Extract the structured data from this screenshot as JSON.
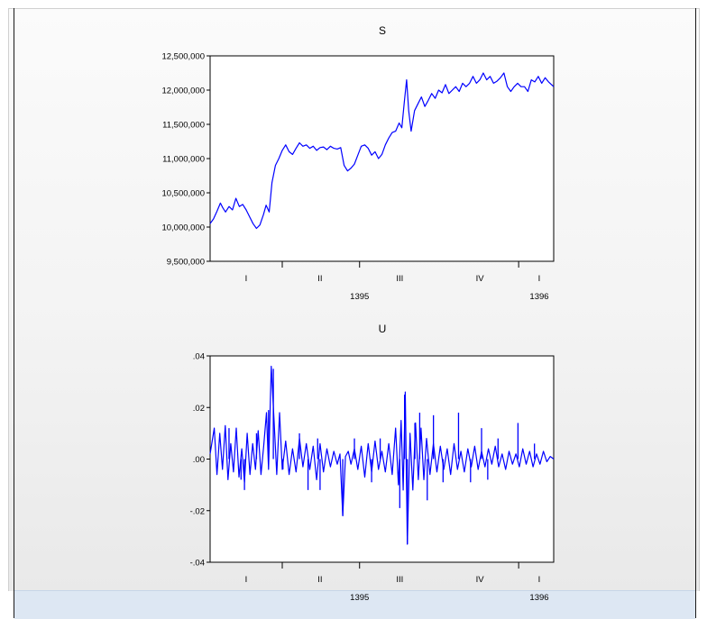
{
  "colors": {
    "series": "#0000ff",
    "axis": "#000000",
    "panel": "#f3f3f3",
    "status_strip": "#dde7f3"
  },
  "chart_data": [
    {
      "type": "line",
      "title": "S",
      "xlabel": "",
      "ylabel": "",
      "ylim": [
        9500000,
        12500000
      ],
      "y_ticks": [
        9500000,
        10000000,
        10500000,
        11000000,
        11500000,
        12000000,
        12500000
      ],
      "y_tick_labels": [
        "9,500,000",
        "10,000,000",
        "10,500,000",
        "11,000,000",
        "11,500,000",
        "12,000,000",
        "12,500,000"
      ],
      "x_period_labels": [
        "I",
        "II",
        "III",
        "IV",
        "I"
      ],
      "x_year_labels": [
        "1395",
        "1396"
      ],
      "grid": false,
      "series": [
        {
          "points": [
            [
              0.0,
              10050000
            ],
            [
              0.01,
              10120000
            ],
            [
              0.02,
              10230000
            ],
            [
              0.03,
              10350000
            ],
            [
              0.037,
              10280000
            ],
            [
              0.045,
              10220000
            ],
            [
              0.055,
              10300000
            ],
            [
              0.065,
              10250000
            ],
            [
              0.075,
              10420000
            ],
            [
              0.085,
              10300000
            ],
            [
              0.095,
              10330000
            ],
            [
              0.105,
              10250000
            ],
            [
              0.115,
              10150000
            ],
            [
              0.125,
              10050000
            ],
            [
              0.135,
              9980000
            ],
            [
              0.145,
              10030000
            ],
            [
              0.155,
              10180000
            ],
            [
              0.163,
              10320000
            ],
            [
              0.172,
              10220000
            ],
            [
              0.18,
              10650000
            ],
            [
              0.19,
              10900000
            ],
            [
              0.2,
              11000000
            ],
            [
              0.21,
              11120000
            ],
            [
              0.22,
              11200000
            ],
            [
              0.23,
              11100000
            ],
            [
              0.24,
              11060000
            ],
            [
              0.25,
              11150000
            ],
            [
              0.26,
              11230000
            ],
            [
              0.27,
              11180000
            ],
            [
              0.28,
              11200000
            ],
            [
              0.29,
              11150000
            ],
            [
              0.3,
              11180000
            ],
            [
              0.31,
              11120000
            ],
            [
              0.32,
              11160000
            ],
            [
              0.33,
              11170000
            ],
            [
              0.34,
              11130000
            ],
            [
              0.35,
              11180000
            ],
            [
              0.36,
              11150000
            ],
            [
              0.37,
              11140000
            ],
            [
              0.38,
              11160000
            ],
            [
              0.39,
              10900000
            ],
            [
              0.4,
              10820000
            ],
            [
              0.41,
              10860000
            ],
            [
              0.42,
              10920000
            ],
            [
              0.43,
              11050000
            ],
            [
              0.44,
              11180000
            ],
            [
              0.45,
              11200000
            ],
            [
              0.46,
              11150000
            ],
            [
              0.47,
              11050000
            ],
            [
              0.48,
              11100000
            ],
            [
              0.49,
              11000000
            ],
            [
              0.5,
              11060000
            ],
            [
              0.51,
              11200000
            ],
            [
              0.52,
              11300000
            ],
            [
              0.53,
              11380000
            ],
            [
              0.54,
              11400000
            ],
            [
              0.55,
              11520000
            ],
            [
              0.558,
              11450000
            ],
            [
              0.565,
              11820000
            ],
            [
              0.572,
              12150000
            ],
            [
              0.578,
              11700000
            ],
            [
              0.585,
              11400000
            ],
            [
              0.595,
              11700000
            ],
            [
              0.605,
              11800000
            ],
            [
              0.615,
              11900000
            ],
            [
              0.625,
              11760000
            ],
            [
              0.635,
              11850000
            ],
            [
              0.645,
              11950000
            ],
            [
              0.655,
              11880000
            ],
            [
              0.665,
              12000000
            ],
            [
              0.675,
              11960000
            ],
            [
              0.685,
              12080000
            ],
            [
              0.695,
              11950000
            ],
            [
              0.705,
              12000000
            ],
            [
              0.715,
              12050000
            ],
            [
              0.725,
              11980000
            ],
            [
              0.735,
              12100000
            ],
            [
              0.745,
              12050000
            ],
            [
              0.755,
              12100000
            ],
            [
              0.765,
              12200000
            ],
            [
              0.775,
              12100000
            ],
            [
              0.785,
              12150000
            ],
            [
              0.795,
              12250000
            ],
            [
              0.805,
              12150000
            ],
            [
              0.815,
              12200000
            ],
            [
              0.825,
              12100000
            ],
            [
              0.835,
              12130000
            ],
            [
              0.845,
              12180000
            ],
            [
              0.855,
              12250000
            ],
            [
              0.865,
              12050000
            ],
            [
              0.875,
              11980000
            ],
            [
              0.885,
              12050000
            ],
            [
              0.895,
              12100000
            ],
            [
              0.905,
              12050000
            ],
            [
              0.915,
              12050000
            ],
            [
              0.925,
              11980000
            ],
            [
              0.935,
              12150000
            ],
            [
              0.945,
              12120000
            ],
            [
              0.955,
              12200000
            ],
            [
              0.965,
              12100000
            ],
            [
              0.975,
              12180000
            ],
            [
              0.985,
              12120000
            ],
            [
              1.0,
              12050000
            ]
          ]
        }
      ]
    },
    {
      "type": "line",
      "title": "U",
      "xlabel": "",
      "ylabel": "",
      "ylim": [
        -0.04,
        0.04
      ],
      "y_ticks": [
        -0.04,
        -0.02,
        0.0,
        0.02,
        0.04
      ],
      "y_tick_labels": [
        "-.04",
        "-.02",
        ".00",
        ".02",
        ".04"
      ],
      "x_period_labels": [
        "I",
        "II",
        "III",
        "IV",
        "I"
      ],
      "x_year_labels": [
        "1395",
        "1396"
      ],
      "grid": false,
      "series": [
        {
          "points": [
            [
              0.0,
              0.002
            ],
            [
              0.012,
              0.012
            ],
            [
              0.02,
              -0.006
            ],
            [
              0.028,
              0.01
            ],
            [
              0.036,
              -0.004
            ],
            [
              0.044,
              0.013
            ],
            [
              0.052,
              -0.008
            ],
            [
              0.06,
              0.006
            ],
            [
              0.068,
              -0.005
            ],
            [
              0.076,
              0.012
            ],
            [
              0.084,
              -0.007
            ],
            [
              0.092,
              0.004
            ],
            [
              0.1,
              -0.009
            ],
            [
              0.108,
              0.01
            ],
            [
              0.116,
              -0.006
            ],
            [
              0.124,
              0.006
            ],
            [
              0.132,
              -0.004
            ],
            [
              0.14,
              0.011
            ],
            [
              0.148,
              -0.006
            ],
            [
              0.156,
              0.005
            ],
            [
              0.164,
              0.018
            ],
            [
              0.17,
              -0.004
            ],
            [
              0.178,
              0.036
            ],
            [
              0.186,
              0.015
            ],
            [
              0.194,
              -0.006
            ],
            [
              0.202,
              0.018
            ],
            [
              0.21,
              -0.004
            ],
            [
              0.22,
              0.007
            ],
            [
              0.23,
              -0.006
            ],
            [
              0.24,
              0.004
            ],
            [
              0.25,
              -0.005
            ],
            [
              0.26,
              0.008
            ],
            [
              0.27,
              -0.003
            ],
            [
              0.28,
              0.006
            ],
            [
              0.29,
              -0.004
            ],
            [
              0.3,
              0.005
            ],
            [
              0.31,
              -0.008
            ],
            [
              0.32,
              0.006
            ],
            [
              0.33,
              -0.005
            ],
            [
              0.34,
              0.004
            ],
            [
              0.35,
              -0.003
            ],
            [
              0.36,
              0.003
            ],
            [
              0.37,
              -0.002
            ],
            [
              0.378,
              0.002
            ],
            [
              0.386,
              -0.022
            ],
            [
              0.394,
              0.001
            ],
            [
              0.402,
              0.003
            ],
            [
              0.41,
              -0.002
            ],
            [
              0.42,
              0.004
            ],
            [
              0.43,
              -0.004
            ],
            [
              0.44,
              0.005
            ],
            [
              0.45,
              -0.007
            ],
            [
              0.46,
              0.006
            ],
            [
              0.47,
              -0.005
            ],
            [
              0.48,
              0.007
            ],
            [
              0.49,
              -0.004
            ],
            [
              0.5,
              0.003
            ],
            [
              0.51,
              -0.005
            ],
            [
              0.52,
              0.006
            ],
            [
              0.53,
              -0.006
            ],
            [
              0.54,
              0.012
            ],
            [
              0.548,
              -0.01
            ],
            [
              0.556,
              0.015
            ],
            [
              0.562,
              -0.012
            ],
            [
              0.568,
              0.026
            ],
            [
              0.574,
              -0.033
            ],
            [
              0.582,
              0.01
            ],
            [
              0.59,
              -0.012
            ],
            [
              0.598,
              0.014
            ],
            [
              0.606,
              -0.008
            ],
            [
              0.614,
              0.012
            ],
            [
              0.622,
              -0.008
            ],
            [
              0.63,
              0.008
            ],
            [
              0.64,
              -0.006
            ],
            [
              0.65,
              0.006
            ],
            [
              0.66,
              -0.005
            ],
            [
              0.67,
              0.005
            ],
            [
              0.68,
              -0.004
            ],
            [
              0.69,
              0.004
            ],
            [
              0.7,
              -0.006
            ],
            [
              0.71,
              0.006
            ],
            [
              0.72,
              -0.004
            ],
            [
              0.73,
              0.003
            ],
            [
              0.74,
              -0.005
            ],
            [
              0.75,
              0.004
            ],
            [
              0.76,
              -0.003
            ],
            [
              0.77,
              0.005
            ],
            [
              0.78,
              -0.004
            ],
            [
              0.79,
              0.003
            ],
            [
              0.8,
              -0.003
            ],
            [
              0.81,
              0.004
            ],
            [
              0.82,
              -0.002
            ],
            [
              0.83,
              0.005
            ],
            [
              0.84,
              -0.003
            ],
            [
              0.85,
              0.002
            ],
            [
              0.86,
              -0.004
            ],
            [
              0.87,
              0.003
            ],
            [
              0.88,
              -0.002
            ],
            [
              0.89,
              0.002
            ],
            [
              0.9,
              -0.003
            ],
            [
              0.91,
              0.004
            ],
            [
              0.92,
              -0.002
            ],
            [
              0.93,
              0.003
            ],
            [
              0.94,
              -0.003
            ],
            [
              0.95,
              0.002
            ],
            [
              0.96,
              -0.002
            ],
            [
              0.97,
              0.003
            ],
            [
              0.98,
              -0.001
            ],
            [
              0.99,
              0.001
            ],
            [
              1.0,
              0.0
            ]
          ],
          "spikes": [
            [
              0.055,
              0.012
            ],
            [
              0.09,
              -0.008
            ],
            [
              0.1,
              -0.012
            ],
            [
              0.135,
              0.01
            ],
            [
              0.17,
              0.019
            ],
            [
              0.184,
              0.035
            ],
            [
              0.212,
              -0.004
            ],
            [
              0.26,
              0.01
            ],
            [
              0.285,
              -0.012
            ],
            [
              0.313,
              0.008
            ],
            [
              0.32,
              -0.012
            ],
            [
              0.386,
              -0.022
            ],
            [
              0.42,
              0.008
            ],
            [
              0.47,
              -0.009
            ],
            [
              0.495,
              0.008
            ],
            [
              0.552,
              -0.019
            ],
            [
              0.566,
              0.025
            ],
            [
              0.574,
              -0.033
            ],
            [
              0.596,
              0.014
            ],
            [
              0.61,
              0.018
            ],
            [
              0.632,
              -0.016
            ],
            [
              0.65,
              0.017
            ],
            [
              0.678,
              -0.009
            ],
            [
              0.723,
              0.018
            ],
            [
              0.758,
              -0.009
            ],
            [
              0.79,
              0.012
            ],
            [
              0.808,
              -0.008
            ],
            [
              0.838,
              0.008
            ],
            [
              0.896,
              0.014
            ],
            [
              0.944,
              0.006
            ]
          ]
        }
      ]
    }
  ]
}
